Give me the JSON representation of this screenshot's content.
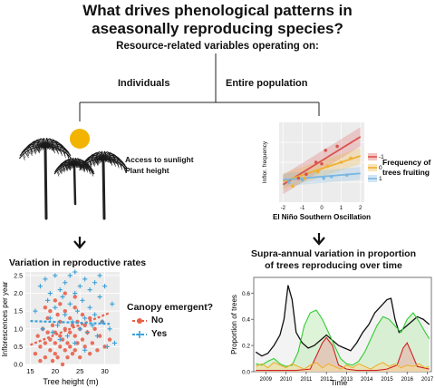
{
  "title_line1": "What drives phenological patterns in",
  "title_line2": "aseasonally reproducing species?",
  "subtitle": "Resource-related variables operating on:",
  "branch_left": "Individuals",
  "branch_right": "Entire population",
  "left_panel": {
    "label_sun": "Access to sunlight",
    "label_height": "Plant height",
    "result_title": "Variation in reproductive rates",
    "legend_title": "Canopy emergent?",
    "legend_no": "No",
    "legend_yes": "Yes",
    "colors": {
      "no": "#e8604c",
      "yes": "#3aa0d6",
      "sun": "#f2b400"
    }
  },
  "right_panel": {
    "legend_title_1": "Frequency of",
    "legend_title_2": "trees fruiting",
    "legend_items": [
      "-1",
      "0",
      "1"
    ],
    "legend_colors": [
      "#d9534f",
      "#f0b030",
      "#7ab6e0"
    ],
    "result_title_1": "Supra-annual variation in proportion",
    "result_title_2": "of trees reproducing over time"
  },
  "chart_data": [
    {
      "type": "scatter",
      "xlabel": "Tree height (m)",
      "ylabel": "Inflorescences per year",
      "xlim": [
        14,
        33
      ],
      "ylim": [
        0,
        2.6
      ],
      "xticks": [
        15,
        20,
        25,
        30
      ],
      "yticks": [
        0.0,
        0.5,
        1.0,
        1.5,
        2.0,
        2.5
      ],
      "ytick_labels": [
        "0.0",
        "0.5",
        "1.0",
        "1.5",
        "2.0",
        "2.5"
      ],
      "series": [
        {
          "name": "No",
          "marker": "circle",
          "trend": [
            [
              15,
              0.55
            ],
            [
              31,
              1.45
            ]
          ],
          "points": [
            [
              16,
              0.3
            ],
            [
              16.5,
              0.8
            ],
            [
              17,
              0.1
            ],
            [
              17,
              0.5
            ],
            [
              17.5,
              1.0
            ],
            [
              18,
              0.2
            ],
            [
              18,
              0.6
            ],
            [
              18.5,
              0.9
            ],
            [
              18.5,
              1.3
            ],
            [
              19,
              0.4
            ],
            [
              19,
              0.7
            ],
            [
              19.5,
              0.1
            ],
            [
              19.5,
              1.1
            ],
            [
              20,
              0.3
            ],
            [
              20,
              0.6
            ],
            [
              20,
              0.9
            ],
            [
              20.5,
              1.4
            ],
            [
              20.5,
              0.2
            ],
            [
              21,
              0.5
            ],
            [
              21,
              0.8
            ],
            [
              21,
              1.2
            ],
            [
              21.5,
              0.0
            ],
            [
              21.5,
              0.7
            ],
            [
              22,
              0.4
            ],
            [
              22,
              1.0
            ],
            [
              22,
              1.5
            ],
            [
              22.5,
              0.6
            ],
            [
              22.5,
              0.2
            ],
            [
              23,
              0.9
            ],
            [
              23,
              1.3
            ],
            [
              23,
              0.5
            ],
            [
              23.5,
              1.1
            ],
            [
              23.5,
              0.3
            ],
            [
              24,
              0.8
            ],
            [
              24,
              1.6
            ],
            [
              24,
              0.4
            ],
            [
              24.5,
              1.2
            ],
            [
              24.5,
              0.6
            ],
            [
              25,
              1.0
            ],
            [
              25,
              0.2
            ],
            [
              25.5,
              0.7
            ],
            [
              25.5,
              1.4
            ],
            [
              26,
              0.5
            ],
            [
              26,
              1.1
            ],
            [
              26.5,
              0.9
            ],
            [
              27,
              0.3
            ],
            [
              27,
              1.3
            ],
            [
              27.5,
              0.6
            ],
            [
              28,
              1.0
            ],
            [
              28.5,
              0.4
            ],
            [
              29,
              0.8
            ],
            [
              29.5,
              1.2
            ],
            [
              30,
              0.5
            ],
            [
              31,
              0.7
            ],
            [
              18,
              1.6
            ],
            [
              20,
              1.8
            ],
            [
              22,
              2.0
            ],
            [
              19,
              1.5
            ],
            [
              24,
              1.9
            ],
            [
              21,
              1.7
            ]
          ]
        },
        {
          "name": "Yes",
          "marker": "plus",
          "trend": [
            [
              15,
              1.22
            ],
            [
              31,
              1.14
            ]
          ],
          "points": [
            [
              16,
              1.5
            ],
            [
              17,
              2.2
            ],
            [
              17.5,
              1.0
            ],
            [
              18,
              2.4
            ],
            [
              18.5,
              1.8
            ],
            [
              19,
              1.3
            ],
            [
              19,
              2.0
            ],
            [
              19.5,
              0.9
            ],
            [
              20,
              2.5
            ],
            [
              20,
              1.6
            ],
            [
              20.5,
              1.1
            ],
            [
              21,
              2.1
            ],
            [
              21,
              0.7
            ],
            [
              21.5,
              1.9
            ],
            [
              22,
              1.4
            ],
            [
              22,
              2.3
            ],
            [
              22.5,
              0.8
            ],
            [
              23,
              1.7
            ],
            [
              23,
              2.5
            ],
            [
              23.5,
              1.2
            ],
            [
              24,
              2.0
            ],
            [
              24,
              0.6
            ],
            [
              24.5,
              1.5
            ],
            [
              25,
              2.2
            ],
            [
              25,
              1.0
            ],
            [
              25.5,
              1.8
            ],
            [
              26,
              2.4
            ],
            [
              26,
              1.3
            ],
            [
              26.5,
              0.9
            ],
            [
              27,
              2.1
            ],
            [
              27,
              1.6
            ],
            [
              27.5,
              1.1
            ],
            [
              28,
              2.3
            ],
            [
              28,
              1.4
            ],
            [
              28.5,
              0.8
            ],
            [
              29,
              1.9
            ],
            [
              29.5,
              1.2
            ],
            [
              30,
              2.2
            ],
            [
              30.5,
              0.5
            ],
            [
              31,
              1.0
            ],
            [
              31.5,
              1.7
            ],
            [
              32,
              0.6
            ],
            [
              29,
              2.5
            ],
            [
              26,
              0.4
            ],
            [
              24,
              2.6
            ]
          ]
        }
      ]
    },
    {
      "type": "scatter",
      "xlabel": "El Niño Southern Oscillation",
      "ylabel": "Inflor. frequency",
      "xlim": [
        -2.2,
        2.2
      ],
      "ylim": [
        0,
        1
      ],
      "xticks": [
        -2,
        -1,
        0,
        1,
        2
      ],
      "xtick_labels": [
        "-2",
        "-1",
        "0",
        "1",
        "2"
      ],
      "series": [
        {
          "name": "-1",
          "trend": [
            [
              -2,
              0.22
            ],
            [
              2,
              0.82
            ]
          ],
          "points": [
            [
              -1.2,
              0.3
            ],
            [
              -0.8,
              0.35
            ],
            [
              -0.3,
              0.5
            ],
            [
              0,
              0.48
            ],
            [
              0.2,
              0.65
            ],
            [
              0.8,
              0.7
            ]
          ]
        },
        {
          "name": "0",
          "trend": [
            [
              -2,
              0.26
            ],
            [
              2,
              0.58
            ]
          ],
          "points": [
            [
              -1.5,
              0.2
            ],
            [
              -0.9,
              0.3
            ],
            [
              -0.2,
              0.38
            ],
            [
              0.3,
              0.45
            ],
            [
              1.0,
              0.5
            ],
            [
              1.5,
              0.55
            ]
          ]
        },
        {
          "name": "1",
          "trend": [
            [
              -2,
              0.28
            ],
            [
              2,
              0.36
            ]
          ],
          "points": [
            [
              -1.7,
              0.25
            ],
            [
              -1.0,
              0.28
            ],
            [
              0.1,
              0.3
            ],
            [
              0.5,
              0.32
            ],
            [
              1.3,
              0.34
            ]
          ]
        }
      ]
    },
    {
      "type": "line",
      "xlabel": "Time",
      "ylabel": "Proportion of trees",
      "xlim": [
        2008.4,
        2017.2
      ],
      "ylim": [
        0,
        0.72
      ],
      "xticks": [
        2009,
        2010,
        2011,
        2012,
        2013,
        2014,
        2015,
        2016,
        2017
      ],
      "xtick_labels": [
        "2009",
        "2010",
        "2011",
        "2012",
        "2013",
        "2014",
        "2015",
        "2016",
        "2017"
      ],
      "yticks": [
        0.0,
        0.2,
        0.4,
        0.6
      ],
      "ytick_labels": [
        "0.0",
        "0.2",
        "0.4",
        "0.6"
      ],
      "series": [
        {
          "name": "black",
          "color": "#111111",
          "x": [
            2008.5,
            2008.8,
            2009.1,
            2009.4,
            2009.7,
            2009.9,
            2010.1,
            2010.3,
            2010.5,
            2010.8,
            2011.1,
            2011.4,
            2011.7,
            2012.0,
            2012.3,
            2012.6,
            2012.9,
            2013.2,
            2013.5,
            2013.8,
            2014.1,
            2014.4,
            2014.7,
            2015.0,
            2015.2,
            2015.4,
            2015.6,
            2015.9,
            2016.2,
            2016.5,
            2016.8,
            2017.1
          ],
          "values": [
            0.15,
            0.12,
            0.14,
            0.2,
            0.28,
            0.4,
            0.66,
            0.55,
            0.3,
            0.22,
            0.18,
            0.2,
            0.24,
            0.28,
            0.24,
            0.2,
            0.18,
            0.16,
            0.22,
            0.3,
            0.36,
            0.45,
            0.5,
            0.55,
            0.56,
            0.4,
            0.3,
            0.34,
            0.38,
            0.42,
            0.4,
            0.36
          ]
        },
        {
          "name": "green",
          "color": "#33cc33",
          "x": [
            2008.5,
            2008.8,
            2009.1,
            2009.4,
            2009.7,
            2010.0,
            2010.3,
            2010.6,
            2010.9,
            2011.2,
            2011.5,
            2011.8,
            2012.1,
            2012.4,
            2012.7,
            2013.0,
            2013.3,
            2013.6,
            2013.9,
            2014.2,
            2014.5,
            2014.8,
            2015.1,
            2015.4,
            2015.7,
            2016.0,
            2016.3,
            2016.6,
            2016.9,
            2017.1
          ],
          "values": [
            0.06,
            0.05,
            0.08,
            0.1,
            0.06,
            0.04,
            0.05,
            0.15,
            0.35,
            0.45,
            0.47,
            0.4,
            0.3,
            0.2,
            0.1,
            0.06,
            0.05,
            0.08,
            0.15,
            0.25,
            0.35,
            0.42,
            0.4,
            0.35,
            0.3,
            0.4,
            0.45,
            0.38,
            0.3,
            0.25
          ]
        },
        {
          "name": "red",
          "color": "#cc2222",
          "x": [
            2008.5,
            2009.5,
            2010.5,
            2011.2,
            2011.5,
            2011.8,
            2012.0,
            2012.3,
            2012.6,
            2013.0,
            2013.5,
            2014.0,
            2014.5,
            2015.0,
            2015.5,
            2015.8,
            2016.0,
            2016.2,
            2016.5,
            2017.1
          ],
          "values": [
            0.01,
            0.01,
            0.01,
            0.02,
            0.12,
            0.22,
            0.26,
            0.2,
            0.05,
            0.02,
            0.01,
            0.01,
            0.01,
            0.02,
            0.05,
            0.18,
            0.22,
            0.15,
            0.04,
            0.02
          ]
        },
        {
          "name": "orange",
          "color": "#f0b030",
          "x": [
            2008.5,
            2008.8,
            2009.1,
            2009.4,
            2009.7,
            2010.0,
            2010.3,
            2010.6,
            2010.9,
            2011.2,
            2011.5,
            2011.8,
            2012.1,
            2012.4,
            2012.7,
            2013.0,
            2013.3,
            2013.6,
            2013.9,
            2014.2,
            2014.5,
            2014.8,
            2015.1,
            2015.4,
            2015.7,
            2016.0,
            2016.3,
            2016.6,
            2016.9,
            2017.1
          ],
          "values": [
            0.04,
            0.06,
            0.03,
            0.07,
            0.05,
            0.03,
            0.06,
            0.04,
            0.02,
            0.05,
            0.07,
            0.03,
            0.06,
            0.04,
            0.02,
            0.05,
            0.03,
            0.06,
            0.04,
            0.02,
            0.05,
            0.07,
            0.04,
            0.06,
            0.03,
            0.05,
            0.04,
            0.06,
            0.03,
            0.04
          ]
        }
      ]
    }
  ]
}
